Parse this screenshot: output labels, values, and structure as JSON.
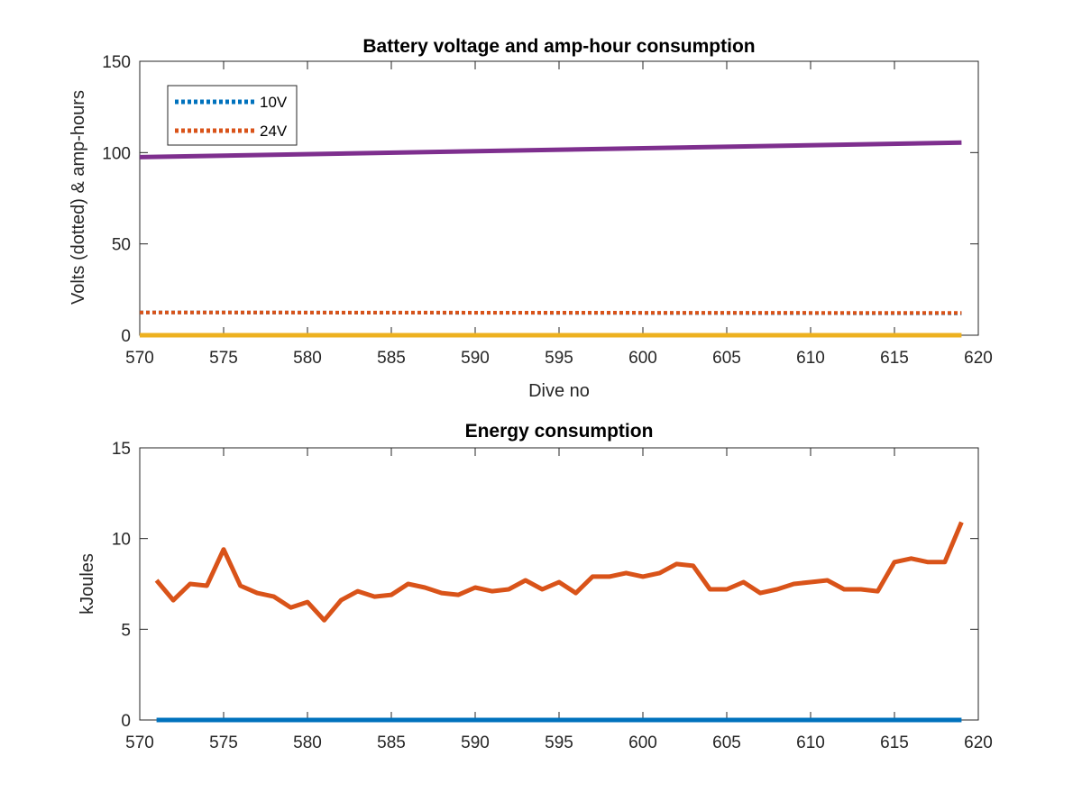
{
  "colors": {
    "blue": "#0072BD",
    "orange": "#D95319",
    "yellow": "#EDB120",
    "purple": "#7E2F8E",
    "axis": "#262626"
  },
  "chart_data": [
    {
      "type": "line",
      "title": "Battery voltage and amp-hour consumption",
      "xlabel": "Dive no",
      "ylabel": "Volts (dotted) & amp-hours",
      "xlim": [
        570,
        620
      ],
      "ylim": [
        0,
        150
      ],
      "xticks": [
        "570",
        "575",
        "580",
        "585",
        "590",
        "595",
        "600",
        "605",
        "610",
        "615",
        "620"
      ],
      "yticks": [
        "0",
        "50",
        "100",
        "150"
      ],
      "grid": false,
      "legend_position": "top-left",
      "legend": [
        "10V",
        "24V"
      ],
      "series": [
        {
          "name": "10V",
          "style": "dotted",
          "color": "#0072BD",
          "x": [
            570,
            619
          ],
          "y": [
            12.5,
            12.0
          ]
        },
        {
          "name": "24V",
          "style": "dotted",
          "color": "#D95319",
          "x": [
            570,
            619
          ],
          "y": [
            12.5,
            12.2
          ]
        },
        {
          "style": "solid",
          "color": "#7E2F8E",
          "x": [
            570,
            619
          ],
          "y": [
            97.5,
            105.5
          ]
        },
        {
          "style": "solid",
          "color": "#EDB120",
          "x": [
            570,
            619
          ],
          "y": [
            0,
            0
          ]
        }
      ]
    },
    {
      "type": "line",
      "title": "Energy consumption",
      "xlabel": "",
      "ylabel": "kJoules",
      "xlim": [
        570,
        620
      ],
      "ylim": [
        0,
        15
      ],
      "xticks": [
        "570",
        "575",
        "580",
        "585",
        "590",
        "595",
        "600",
        "605",
        "610",
        "615",
        "620"
      ],
      "yticks": [
        "0",
        "5",
        "10",
        "15"
      ],
      "grid": false,
      "series": [
        {
          "style": "solid",
          "color": "#D95319",
          "x": [
            571,
            572,
            573,
            574,
            575,
            576,
            577,
            578,
            579,
            580,
            581,
            582,
            583,
            584,
            585,
            586,
            587,
            588,
            589,
            590,
            591,
            592,
            593,
            594,
            595,
            596,
            597,
            598,
            599,
            600,
            601,
            602,
            603,
            604,
            605,
            606,
            607,
            608,
            609,
            610,
            611,
            612,
            613,
            614,
            615,
            616,
            617,
            618,
            619
          ],
          "y": [
            7.7,
            6.6,
            7.5,
            7.4,
            9.4,
            7.4,
            7.0,
            6.8,
            6.2,
            6.5,
            5.5,
            6.6,
            7.1,
            6.8,
            6.9,
            7.5,
            7.3,
            7.0,
            6.9,
            7.3,
            7.1,
            7.2,
            7.7,
            7.2,
            7.6,
            7.0,
            7.9,
            7.9,
            8.1,
            7.9,
            8.1,
            8.6,
            8.5,
            7.2,
            7.2,
            7.6,
            7.0,
            7.2,
            7.5,
            7.6,
            7.7,
            7.2,
            7.2,
            7.1,
            8.7,
            8.9,
            8.7,
            8.7,
            10.9
          ]
        },
        {
          "style": "solid",
          "color": "#0072BD",
          "x": [
            571,
            619
          ],
          "y": [
            0,
            0
          ]
        }
      ]
    }
  ]
}
